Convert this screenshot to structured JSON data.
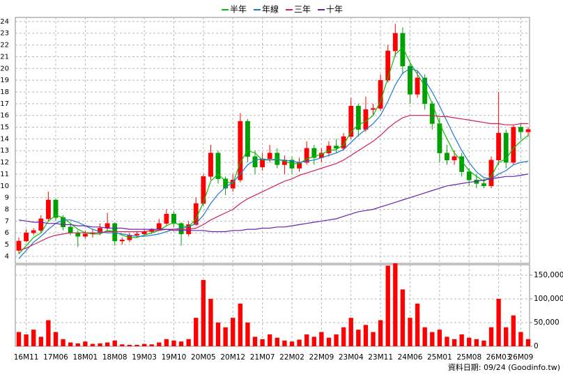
{
  "chart_data": {
    "type": "candlestick",
    "categories": [
      null,
      "16M11",
      null,
      null,
      null,
      "17M06",
      null,
      null,
      null,
      "18M01",
      null,
      null,
      null,
      "18M08",
      null,
      null,
      null,
      "19M03",
      null,
      null,
      null,
      "19M10",
      null,
      null,
      null,
      "20M05",
      null,
      null,
      null,
      "20M12",
      null,
      null,
      null,
      "21M07",
      null,
      null,
      null,
      "22M02",
      null,
      null,
      null,
      "22M09",
      null,
      null,
      null,
      "23M04",
      null,
      null,
      null,
      "23M11",
      null,
      null,
      null,
      "24M06",
      null,
      null,
      null,
      "25M01",
      null,
      null,
      null,
      "25M08",
      null,
      null,
      null,
      "26M03",
      null,
      null,
      "26M09",
      null
    ],
    "open": [
      4.5,
      5.3,
      6.0,
      6.2,
      7.2,
      8.8,
      7.3,
      6.5,
      6.0,
      5.7,
      5.9,
      6.0,
      6.4,
      6.8,
      5.3,
      5.4,
      5.8,
      5.9,
      6.1,
      6.3,
      6.8,
      7.6,
      6.8,
      5.9,
      6.7,
      8.5,
      10.8,
      12.8,
      10.6,
      9.8,
      10.5,
      15.5,
      12.5,
      11.6,
      12.3,
      12.8,
      11.8,
      12.2,
      11.5,
      12.0,
      13.2,
      12.4,
      12.8,
      13.4,
      13.2,
      14.2,
      16.8,
      14.8,
      16.5,
      16.6,
      19.0,
      21.5,
      23.0,
      20.2,
      17.8,
      19.2,
      17.0,
      15.3,
      12.8,
      12.2,
      12.5,
      11.2,
      10.5,
      10.2,
      10.0,
      12.2,
      14.5,
      12.0,
      15.0,
      14.6
    ],
    "high": [
      5.6,
      6.3,
      6.4,
      7.5,
      9.5,
      8.9,
      7.5,
      6.8,
      6.2,
      6.2,
      6.3,
      6.8,
      7.7,
      6.9,
      5.6,
      6.0,
      6.1,
      6.3,
      6.4,
      7.2,
      8.0,
      7.8,
      6.9,
      7.0,
      9.0,
      11.0,
      13.5,
      13.0,
      10.8,
      11.0,
      16.2,
      15.7,
      13.0,
      12.8,
      13.5,
      13.2,
      12.6,
      12.5,
      12.4,
      13.8,
      13.5,
      13.2,
      13.8,
      14.0,
      14.5,
      17.5,
      17.0,
      17.6,
      17.0,
      19.5,
      22.0,
      23.8,
      23.5,
      20.4,
      19.8,
      19.5,
      17.2,
      15.8,
      13.5,
      13.0,
      12.8,
      11.5,
      11.0,
      10.6,
      12.5,
      18.0,
      14.8,
      15.2,
      15.3,
      15.0
    ],
    "low": [
      4.2,
      5.2,
      5.8,
      6.0,
      7.0,
      7.0,
      6.2,
      5.8,
      4.8,
      5.5,
      5.6,
      5.8,
      6.2,
      4.9,
      5.0,
      5.2,
      5.6,
      5.8,
      5.9,
      6.2,
      6.6,
      6.5,
      4.9,
      5.7,
      6.6,
      8.3,
      10.5,
      10.2,
      9.2,
      9.5,
      10.3,
      12.0,
      11.0,
      11.3,
      12.0,
      11.5,
      11.0,
      11.0,
      11.2,
      11.8,
      11.8,
      12.0,
      12.5,
      12.8,
      13.0,
      14.0,
      14.2,
      14.6,
      16.0,
      16.4,
      18.8,
      21.0,
      19.5,
      17.0,
      17.5,
      16.5,
      14.8,
      12.0,
      11.8,
      11.8,
      10.8,
      10.0,
      9.8,
      9.8,
      9.8,
      11.8,
      11.5,
      11.8,
      14.0,
      14.2
    ],
    "close": [
      5.3,
      6.0,
      6.2,
      7.2,
      8.8,
      7.3,
      6.5,
      6.0,
      5.7,
      5.9,
      6.0,
      6.4,
      6.8,
      5.3,
      5.4,
      5.8,
      5.9,
      6.1,
      6.3,
      6.8,
      7.6,
      6.8,
      5.9,
      6.7,
      8.5,
      10.8,
      12.8,
      10.6,
      9.8,
      10.5,
      15.5,
      12.5,
      11.6,
      12.3,
      12.8,
      11.8,
      12.2,
      11.5,
      12.0,
      13.2,
      12.4,
      12.8,
      13.4,
      13.2,
      14.2,
      16.8,
      14.8,
      16.5,
      16.6,
      19.0,
      21.5,
      23.0,
      20.2,
      17.8,
      19.2,
      17.0,
      15.3,
      12.8,
      12.2,
      12.5,
      11.2,
      10.5,
      10.2,
      10.0,
      12.2,
      14.5,
      12.0,
      15.0,
      14.6,
      14.8
    ],
    "volume": [
      30000,
      25000,
      35000,
      20000,
      55000,
      30000,
      15000,
      8000,
      6000,
      10000,
      5000,
      6000,
      8000,
      12000,
      4000,
      3000,
      3000,
      5000,
      4000,
      8000,
      15000,
      12000,
      10000,
      15000,
      60000,
      140000,
      100000,
      50000,
      40000,
      60000,
      90000,
      50000,
      20000,
      15000,
      25000,
      18000,
      12000,
      10000,
      14000,
      25000,
      20000,
      30000,
      18000,
      25000,
      40000,
      60000,
      35000,
      45000,
      30000,
      55000,
      170000,
      175000,
      120000,
      60000,
      90000,
      40000,
      30000,
      35000,
      20000,
      15000,
      25000,
      18000,
      15000,
      12000,
      40000,
      100000,
      40000,
      65000,
      30000,
      15000
    ],
    "up_color": "#ff0000",
    "down_color": "#00a000",
    "volume_color": "#ff0000",
    "series": [
      {
        "name": "半年",
        "color": "#00c000",
        "values": [
          4.2,
          4.9,
          5.6,
          6.0,
          7.0,
          7.5,
          7.3,
          6.8,
          6.3,
          6.0,
          5.9,
          5.9,
          6.2,
          6.1,
          5.8,
          5.6,
          5.6,
          5.8,
          6.0,
          6.2,
          6.6,
          6.9,
          6.6,
          6.5,
          7.2,
          8.6,
          10.4,
          11.0,
          10.4,
          10.2,
          12.0,
          13.0,
          12.8,
          12.2,
          12.2,
          12.3,
          12.1,
          11.9,
          11.9,
          12.3,
          12.5,
          12.7,
          13.0,
          13.1,
          13.5,
          14.6,
          15.2,
          15.5,
          16.0,
          17.2,
          19.2,
          21.2,
          21.8,
          20.5,
          19.5,
          18.5,
          17.0,
          15.3,
          14.0,
          12.8,
          12.1,
          11.3,
          10.8,
          10.4,
          10.8,
          12.0,
          12.3,
          13.2,
          13.8,
          14.3
        ]
      },
      {
        "name": "年線",
        "color": "#1e78d0",
        "values": [
          3.8,
          4.5,
          5.2,
          5.7,
          6.3,
          6.8,
          7.1,
          7.1,
          6.9,
          6.6,
          6.3,
          6.1,
          6.0,
          6.0,
          5.9,
          5.8,
          5.7,
          5.7,
          5.8,
          5.9,
          6.1,
          6.3,
          6.4,
          6.5,
          6.8,
          7.5,
          8.5,
          9.3,
          9.9,
          10.3,
          11.0,
          11.8,
          12.2,
          12.3,
          12.2,
          12.2,
          12.2,
          12.1,
          12.0,
          12.1,
          12.2,
          12.4,
          12.6,
          12.8,
          13.1,
          13.7,
          14.3,
          14.8,
          15.3,
          16.0,
          17.2,
          18.6,
          19.6,
          20.0,
          19.8,
          19.0,
          18.0,
          16.8,
          15.5,
          14.2,
          13.0,
          12.0,
          11.2,
          10.7,
          10.6,
          11.0,
          11.3,
          11.8,
          12.0,
          12.1
        ]
      },
      {
        "name": "三年",
        "color": "#d0205a",
        "values": [
          4.5,
          4.7,
          5.0,
          5.3,
          5.6,
          5.8,
          5.9,
          6.0,
          6.0,
          6.0,
          6.0,
          6.0,
          6.1,
          6.1,
          6.1,
          6.1,
          6.1,
          6.1,
          6.2,
          6.2,
          6.3,
          6.3,
          6.3,
          6.3,
          6.4,
          6.7,
          7.1,
          7.4,
          7.7,
          8.0,
          8.5,
          8.9,
          9.2,
          9.5,
          9.8,
          10.1,
          10.4,
          10.6,
          10.9,
          11.1,
          11.3,
          11.5,
          11.7,
          11.9,
          12.2,
          12.6,
          13.0,
          13.4,
          13.8,
          14.3,
          14.9,
          15.4,
          15.8,
          16.0,
          16.0,
          16.0,
          16.0,
          15.9,
          15.9,
          15.8,
          15.7,
          15.6,
          15.5,
          15.4,
          15.3,
          15.3,
          15.2,
          15.2,
          15.3,
          15.3
        ]
      },
      {
        "name": "十年",
        "color": "#6a20b0",
        "values": [
          7.1,
          7.0,
          6.9,
          6.9,
          6.8,
          6.8,
          6.7,
          6.7,
          6.6,
          6.6,
          6.5,
          6.5,
          6.4,
          6.4,
          6.4,
          6.3,
          6.3,
          6.3,
          6.3,
          6.3,
          6.3,
          6.2,
          6.2,
          6.2,
          6.2,
          6.2,
          6.1,
          6.1,
          6.1,
          6.2,
          6.2,
          6.3,
          6.3,
          6.4,
          6.4,
          6.5,
          6.5,
          6.6,
          6.7,
          6.8,
          6.9,
          7.0,
          7.1,
          7.2,
          7.4,
          7.6,
          7.8,
          7.9,
          8.0,
          8.2,
          8.4,
          8.6,
          8.8,
          9.0,
          9.2,
          9.4,
          9.6,
          9.8,
          10.0,
          10.1,
          10.2,
          10.3,
          10.4,
          10.5,
          10.6,
          10.7,
          10.8,
          10.8,
          10.9,
          11.0
        ]
      }
    ],
    "ylim": [
      3.4,
      24.35
    ],
    "yticks": [
      4,
      5,
      6,
      7,
      8,
      9,
      10,
      11,
      12,
      13,
      14,
      15,
      16,
      17,
      18,
      19,
      20,
      21,
      22,
      23,
      24
    ],
    "y2lim": [
      0,
      172000
    ],
    "y2ticks": [
      0,
      {
        "value": 50000,
        "label": "50,000"
      },
      {
        "value": 100000,
        "label": "100,000"
      },
      {
        "value": 150000,
        "label": "150,000"
      }
    ],
    "grid": true,
    "legend": "top",
    "footer": "資料日期: 09/24  (Goodinfo.tw)"
  }
}
